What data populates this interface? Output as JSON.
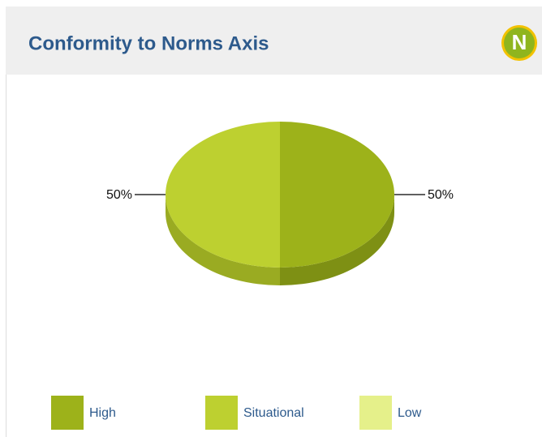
{
  "badge": "N",
  "chart_data": {
    "type": "pie",
    "title": "Conformity to Norms Axis",
    "categories": [
      "High",
      "Situational",
      "Low"
    ],
    "values": [
      50,
      50,
      0
    ],
    "value_labels": [
      "50%",
      "50%",
      null
    ],
    "colors": [
      "#9db21a",
      "#bdd030",
      "#e5f08a"
    ],
    "side_colors": [
      "#7e9014",
      "#9aab22",
      "#c2cc6a"
    ]
  }
}
